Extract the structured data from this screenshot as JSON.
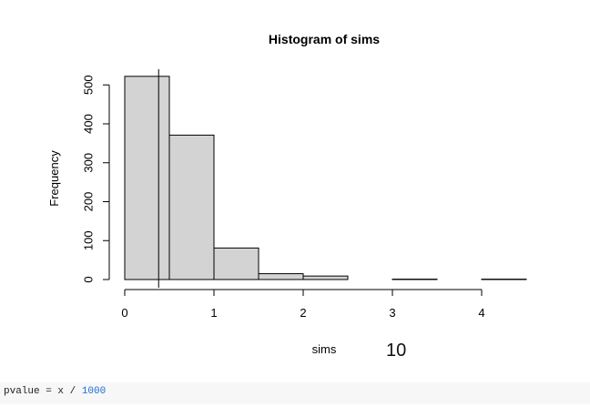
{
  "chart_data": {
    "type": "bar",
    "title": "Histogram of sims",
    "xlabel": "sims",
    "ylabel": "Frequency",
    "bins": [
      {
        "start": 0.0,
        "end": 0.5,
        "count": 522
      },
      {
        "start": 0.5,
        "end": 1.0,
        "count": 371
      },
      {
        "start": 1.0,
        "end": 1.5,
        "count": 81
      },
      {
        "start": 1.5,
        "end": 2.0,
        "count": 15
      },
      {
        "start": 2.0,
        "end": 2.5,
        "count": 9
      },
      {
        "start": 2.5,
        "end": 3.0,
        "count": 0
      },
      {
        "start": 3.0,
        "end": 3.5,
        "count": 1
      },
      {
        "start": 3.5,
        "end": 4.0,
        "count": 0
      },
      {
        "start": 4.0,
        "end": 4.5,
        "count": 1
      }
    ],
    "xlim": [
      0,
      4.5
    ],
    "ylim": [
      0,
      530
    ],
    "x_ticks": [
      "0",
      "1",
      "2",
      "3",
      "4"
    ],
    "y_ticks": [
      "0",
      "100",
      "200",
      "300",
      "400",
      "500"
    ],
    "vline_x": 0.38,
    "bar_color": "#d3d3d3",
    "grid": false
  },
  "annotation": {
    "text": "10"
  },
  "code": {
    "prefix": "pvalue = x / ",
    "number": "1000"
  }
}
